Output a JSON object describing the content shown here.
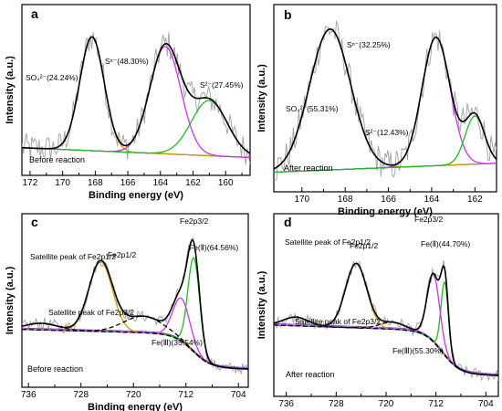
{
  "colors": {
    "envelope": "#000000",
    "raw": "#a8a8a8",
    "orange": "#c8a000",
    "magenta": "#cc33ee",
    "green": "#22bb22",
    "background_line": "#1a3fd0",
    "purple": "#7a3fc0",
    "dashed": "#000000"
  },
  "chart_data": [
    {
      "panel": "a",
      "type": "line",
      "xlabel": "Binding energy (eV)",
      "ylabel": "Intensity (a.u.)",
      "condition": "Before reaction",
      "xlim": [
        172.5,
        158.5
      ],
      "xticks": [
        172,
        170,
        168,
        166,
        164,
        162,
        160
      ],
      "baseline": 0.12,
      "bg_end": 0.06,
      "ymax": 1.0,
      "peaks": [
        {
          "center": 168.2,
          "height": 0.7,
          "width": 0.75,
          "color": "orange"
        },
        {
          "center": 163.7,
          "height": 0.66,
          "width": 0.95,
          "color": "magenta"
        },
        {
          "center": 161.0,
          "height": 0.34,
          "width": 1.1,
          "color": "green"
        }
      ],
      "labels": [
        {
          "text": "SO₄²⁻(24.24%)",
          "x": 171.7,
          "y": 0.71
        },
        {
          "text": "Sⁿ⁻(48.30%)",
          "x": 166.2,
          "y": 0.78
        },
        {
          "text": "S²⁻(27.45%)",
          "x": 160.3,
          "y": 0.61
        }
      ]
    },
    {
      "panel": "b",
      "type": "line",
      "xlabel": "Binding energy (eV)",
      "ylabel": "Intensity (a.u.)",
      "condition": "After reaction",
      "xlim": [
        171.3,
        161.0
      ],
      "xticks": [
        170,
        168,
        166,
        164,
        162
      ],
      "baseline": 0.06,
      "bg_end": 0.11,
      "ymax": 1.0,
      "peaks": [
        {
          "center": 168.7,
          "height": 0.79,
          "width": 0.95,
          "color": "orange"
        },
        {
          "center": 163.8,
          "height": 0.72,
          "width": 0.65,
          "color": "magenta"
        },
        {
          "center": 162.0,
          "height": 0.27,
          "width": 0.45,
          "color": "green"
        }
      ],
      "labels": [
        {
          "text": "SO₄²⁻(55.31%)",
          "x": 170.9,
          "y": 0.12
        },
        {
          "text": "Sⁿ⁻(32.25%)",
          "x": 165.3,
          "y": 0.78
        },
        {
          "text": "S²⁻(12.43%)",
          "x": 164.4,
          "y": -0.02
        }
      ]
    },
    {
      "panel": "c",
      "type": "line",
      "xlabel": "Binding energy (eV)",
      "ylabel": "Intensity (a.u.)",
      "condition": "Before reaction",
      "xlim": [
        737.0,
        702.5
      ],
      "xticks": [
        736,
        728,
        720,
        712,
        704
      ],
      "baseline": 0.3,
      "bg_end": 0.06,
      "step_center": 711.0,
      "ymax": 1.0,
      "peaks": [
        {
          "center": 725.0,
          "height": 0.42,
          "width": 1.8,
          "color": "orange"
        },
        {
          "center": 710.8,
          "height": 0.57,
          "width": 0.9,
          "color": "green"
        },
        {
          "center": 712.7,
          "height": 0.26,
          "width": 1.3,
          "color": "magenta"
        },
        {
          "center": 734.0,
          "height": 0.04,
          "width": 2.5,
          "color": "dashed"
        },
        {
          "center": 718.5,
          "height": 0.1,
          "width": 3.0,
          "color": "dashed"
        }
      ],
      "labels": [
        {
          "text": "Fe2p3/2",
          "x": 710.3,
          "y": 0.97
        },
        {
          "text": "Fe2p1/2",
          "x": 726.2,
          "y": 0.79
        },
        {
          "text": "Fe(Ⅱ)(64.56%)",
          "x": 710.3,
          "y": 0.79
        },
        {
          "text": "Satellite peak of Fe2p1/2",
          "x": 735.5,
          "y": 0.55
        },
        {
          "text": "Satellite peak of Fe2p3/2",
          "x": 731.0,
          "y": 0.19
        },
        {
          "text": "Fe(Ⅲ)(35.54%)",
          "x": 718.0,
          "y": 0.08
        }
      ]
    },
    {
      "panel": "d",
      "type": "line",
      "xlabel": "Binding energy (eV)",
      "ylabel": "Intensity (a.u.)",
      "condition": "After reaction",
      "xlim": [
        738.0,
        702.0
      ],
      "xticks": [
        736,
        728,
        720,
        712,
        704
      ],
      "baseline": 0.36,
      "bg_end": 0.07,
      "step_center": 711.0,
      "ymax": 1.0,
      "peaks": [
        {
          "center": 724.8,
          "height": 0.37,
          "width": 1.7,
          "color": "orange"
        },
        {
          "center": 710.6,
          "height": 0.42,
          "width": 0.6,
          "color": "green"
        },
        {
          "center": 712.4,
          "height": 0.39,
          "width": 1.0,
          "color": "magenta"
        },
        {
          "center": 734.5,
          "height": 0.05,
          "width": 2.0,
          "color": "dashed"
        },
        {
          "center": 719.0,
          "height": 0.04,
          "width": 2.0,
          "color": "dashed"
        }
      ],
      "labels": [
        {
          "text": "Fe2p3/2",
          "x": 710.0,
          "y": 0.97
        },
        {
          "text": "Fe2p1/2",
          "x": 725.0,
          "y": 0.8
        },
        {
          "text": "Fe(Ⅱ)(44.70%)",
          "x": 710.2,
          "y": 0.74
        },
        {
          "text": "Satellite peak of Fe2p1/2",
          "x": 736.8,
          "y": 0.55
        },
        {
          "text": "Satellite peak of Fe2p3/2",
          "x": 730.0,
          "y": 0.19
        },
        {
          "text": "Fe(Ⅲ)(55.30%)",
          "x": 720.0,
          "y": 0.06
        }
      ]
    }
  ]
}
